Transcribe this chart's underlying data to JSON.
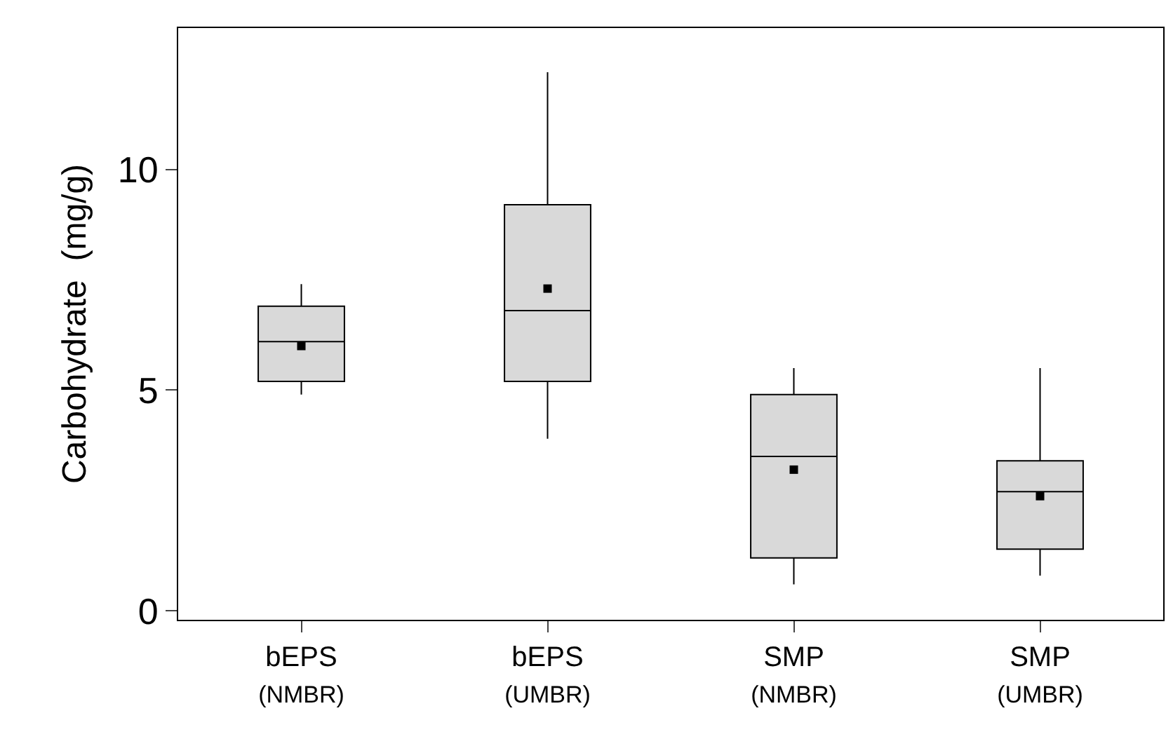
{
  "chart_data": {
    "type": "box",
    "ylabel": "Carbohydrate  (mg/g)",
    "categories": [
      "bEPS\n(NMBR)",
      "bEPS\n(UMBR)",
      "SMP\n(NMBR)",
      "SMP\n(UMBR)"
    ],
    "boxes": [
      {
        "low": 4.9,
        "q1": 5.2,
        "median": 6.1,
        "q3": 6.9,
        "high": 7.4,
        "mean": 6.0
      },
      {
        "low": 3.9,
        "q1": 5.2,
        "median": 6.8,
        "q3": 9.2,
        "high": 12.2,
        "mean": 7.3
      },
      {
        "low": 0.6,
        "q1": 1.2,
        "median": 3.5,
        "q3": 4.9,
        "high": 5.5,
        "mean": 3.2
      },
      {
        "low": 0.8,
        "q1": 1.4,
        "median": 2.7,
        "q3": 3.4,
        "high": 5.5,
        "mean": 2.6
      }
    ],
    "color": "#d9d9d9",
    "ylim": [
      -0.2,
      13.2
    ],
    "yticks": [
      0,
      5,
      10
    ],
    "marker": "square"
  }
}
